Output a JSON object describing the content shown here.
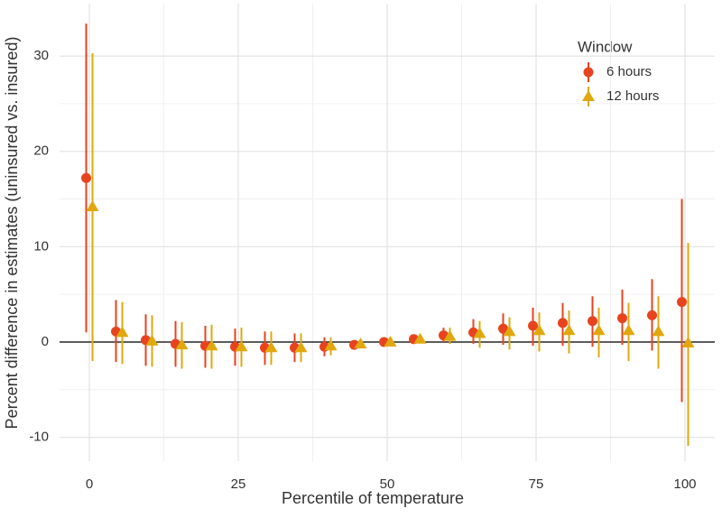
{
  "chart_data": {
    "type": "pointrange",
    "x_label": "Percentile of temperature",
    "y_label": "Percent difference in estimates (uninsured vs. insured)",
    "legend_title": "Window",
    "legend_position": "top-right",
    "x": [
      0,
      5,
      10,
      15,
      20,
      25,
      30,
      35,
      40,
      45,
      50,
      55,
      60,
      65,
      70,
      75,
      80,
      85,
      90,
      95,
      100
    ],
    "series": [
      {
        "name": "6 hours",
        "color": "#e8431f",
        "shape": "circle",
        "values": [
          17.2,
          1.1,
          0.2,
          -0.2,
          -0.4,
          -0.5,
          -0.6,
          -0.6,
          -0.5,
          -0.3,
          0.0,
          0.3,
          0.7,
          1.0,
          1.4,
          1.7,
          2.0,
          2.2,
          2.5,
          2.8,
          4.2
        ],
        "lower": [
          1.0,
          -2.1,
          -2.5,
          -2.6,
          -2.7,
          -2.5,
          -2.4,
          -2.1,
          -1.5,
          -0.6,
          -0.1,
          0.1,
          0.0,
          -0.2,
          -0.3,
          -0.4,
          -0.4,
          -0.5,
          -0.3,
          -0.9,
          -6.3
        ],
        "upper": [
          33.4,
          4.4,
          2.9,
          2.2,
          1.7,
          1.4,
          1.1,
          0.9,
          0.5,
          0.1,
          0.1,
          0.6,
          1.5,
          2.4,
          3.0,
          3.6,
          4.1,
          4.8,
          5.5,
          6.6,
          15.0
        ]
      },
      {
        "name": "12 hours",
        "color": "#e0a80e",
        "shape": "triangle",
        "values": [
          14.2,
          1.0,
          0.1,
          -0.3,
          -0.4,
          -0.5,
          -0.6,
          -0.6,
          -0.4,
          -0.2,
          0.0,
          0.3,
          0.6,
          0.9,
          1.1,
          1.2,
          1.2,
          1.2,
          1.2,
          1.1,
          -0.1
        ],
        "lower": [
          -2.0,
          -2.3,
          -2.6,
          -2.8,
          -2.8,
          -2.6,
          -2.4,
          -2.1,
          -1.4,
          -0.5,
          -0.1,
          0.0,
          -0.2,
          -0.6,
          -0.8,
          -1.0,
          -1.2,
          -1.6,
          -2.0,
          -2.8,
          -10.9
        ],
        "upper": [
          30.3,
          4.2,
          2.8,
          2.1,
          1.8,
          1.5,
          1.1,
          0.9,
          0.5,
          0.2,
          0.2,
          0.6,
          1.5,
          2.2,
          2.6,
          3.1,
          3.3,
          3.6,
          4.1,
          4.8,
          10.4
        ]
      }
    ],
    "reference_line": 0,
    "xlim": [
      -5,
      105
    ],
    "xticks": [
      0,
      25,
      50,
      75,
      100
    ],
    "ylim": [
      -12.5,
      35.5
    ],
    "yticks": [
      -10,
      0,
      10,
      20,
      30
    ],
    "grid": true
  }
}
